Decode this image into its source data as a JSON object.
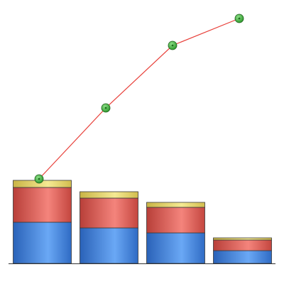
{
  "chart_data": {
    "type": "bar",
    "stacked": true,
    "categories": [
      "",
      "",
      "",
      ""
    ],
    "series": [
      {
        "type": "bar",
        "values": [
          58,
          50,
          43,
          18
        ],
        "color": "#3f7fd6"
      },
      {
        "type": "bar",
        "values": [
          49,
          42,
          36,
          15
        ],
        "color": "#e0605a"
      },
      {
        "type": "bar",
        "values": [
          10,
          9,
          7,
          3
        ],
        "color": "#e8d66a"
      },
      {
        "type": "line",
        "values": [
          119,
          219,
          307,
          345
        ],
        "color": "#e8403a",
        "marker_color": "#4db84a"
      }
    ],
    "ylim": [
      0,
      371
    ],
    "grid": false,
    "legend": "none",
    "title": "",
    "xlabel": "",
    "ylabel": ""
  }
}
